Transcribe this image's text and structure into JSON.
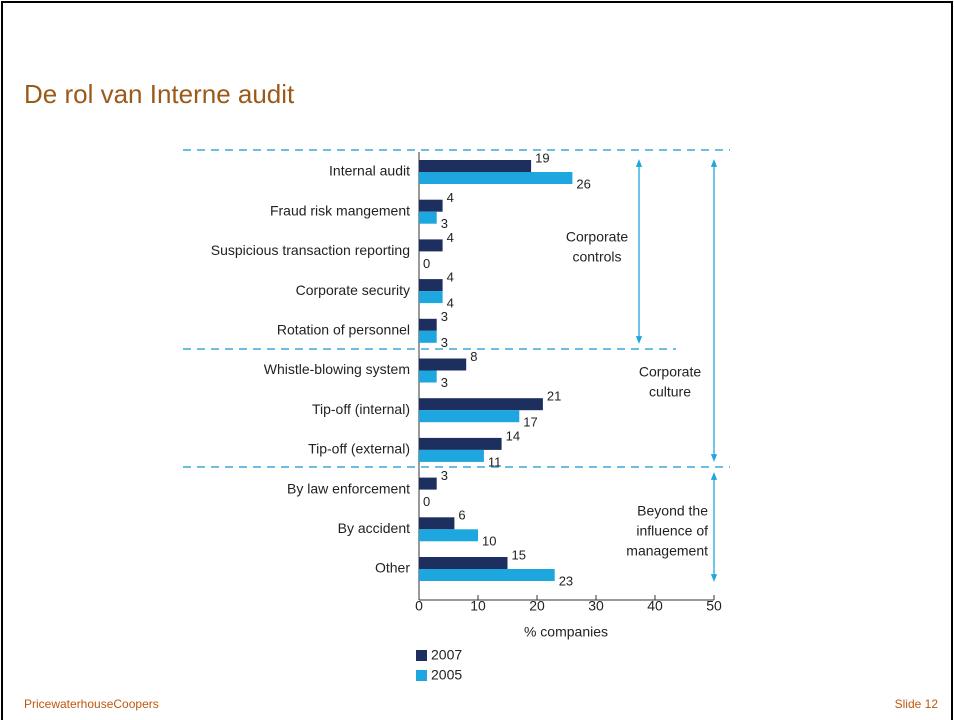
{
  "title": "De rol van Interne audit",
  "footer": {
    "left": "PricewaterhouseCoopers",
    "right": "Slide 12"
  },
  "chart_data": {
    "type": "barh",
    "categories": [
      "Internal audit",
      "Fraud risk mangement",
      "Suspicious transaction reporting",
      "Corporate security",
      "Rotation of personnel",
      "Whistle-blowing system",
      "Tip-off (internal)",
      "Tip-off (external)",
      "By law enforcement",
      "By accident",
      "Other"
    ],
    "series": [
      {
        "name": "2007",
        "color": "#1c2f5e",
        "values": [
          19,
          4,
          4,
          4,
          3,
          8,
          21,
          14,
          3,
          6,
          15
        ]
      },
      {
        "name": "2005",
        "color": "#1ea6df",
        "values": [
          26,
          3,
          0,
          4,
          3,
          3,
          17,
          11,
          0,
          10,
          23
        ]
      }
    ],
    "xlim": [
      0,
      50
    ],
    "xticks": [
      0,
      10,
      20,
      30,
      40,
      50
    ],
    "xlabel": "% companies",
    "annotations": [
      {
        "lines": [
          "Corporate",
          "controls"
        ]
      },
      {
        "lines": [
          "Corporate",
          "culture"
        ]
      },
      {
        "lines": [
          "Beyond the",
          "influence of",
          "management"
        ]
      }
    ]
  }
}
